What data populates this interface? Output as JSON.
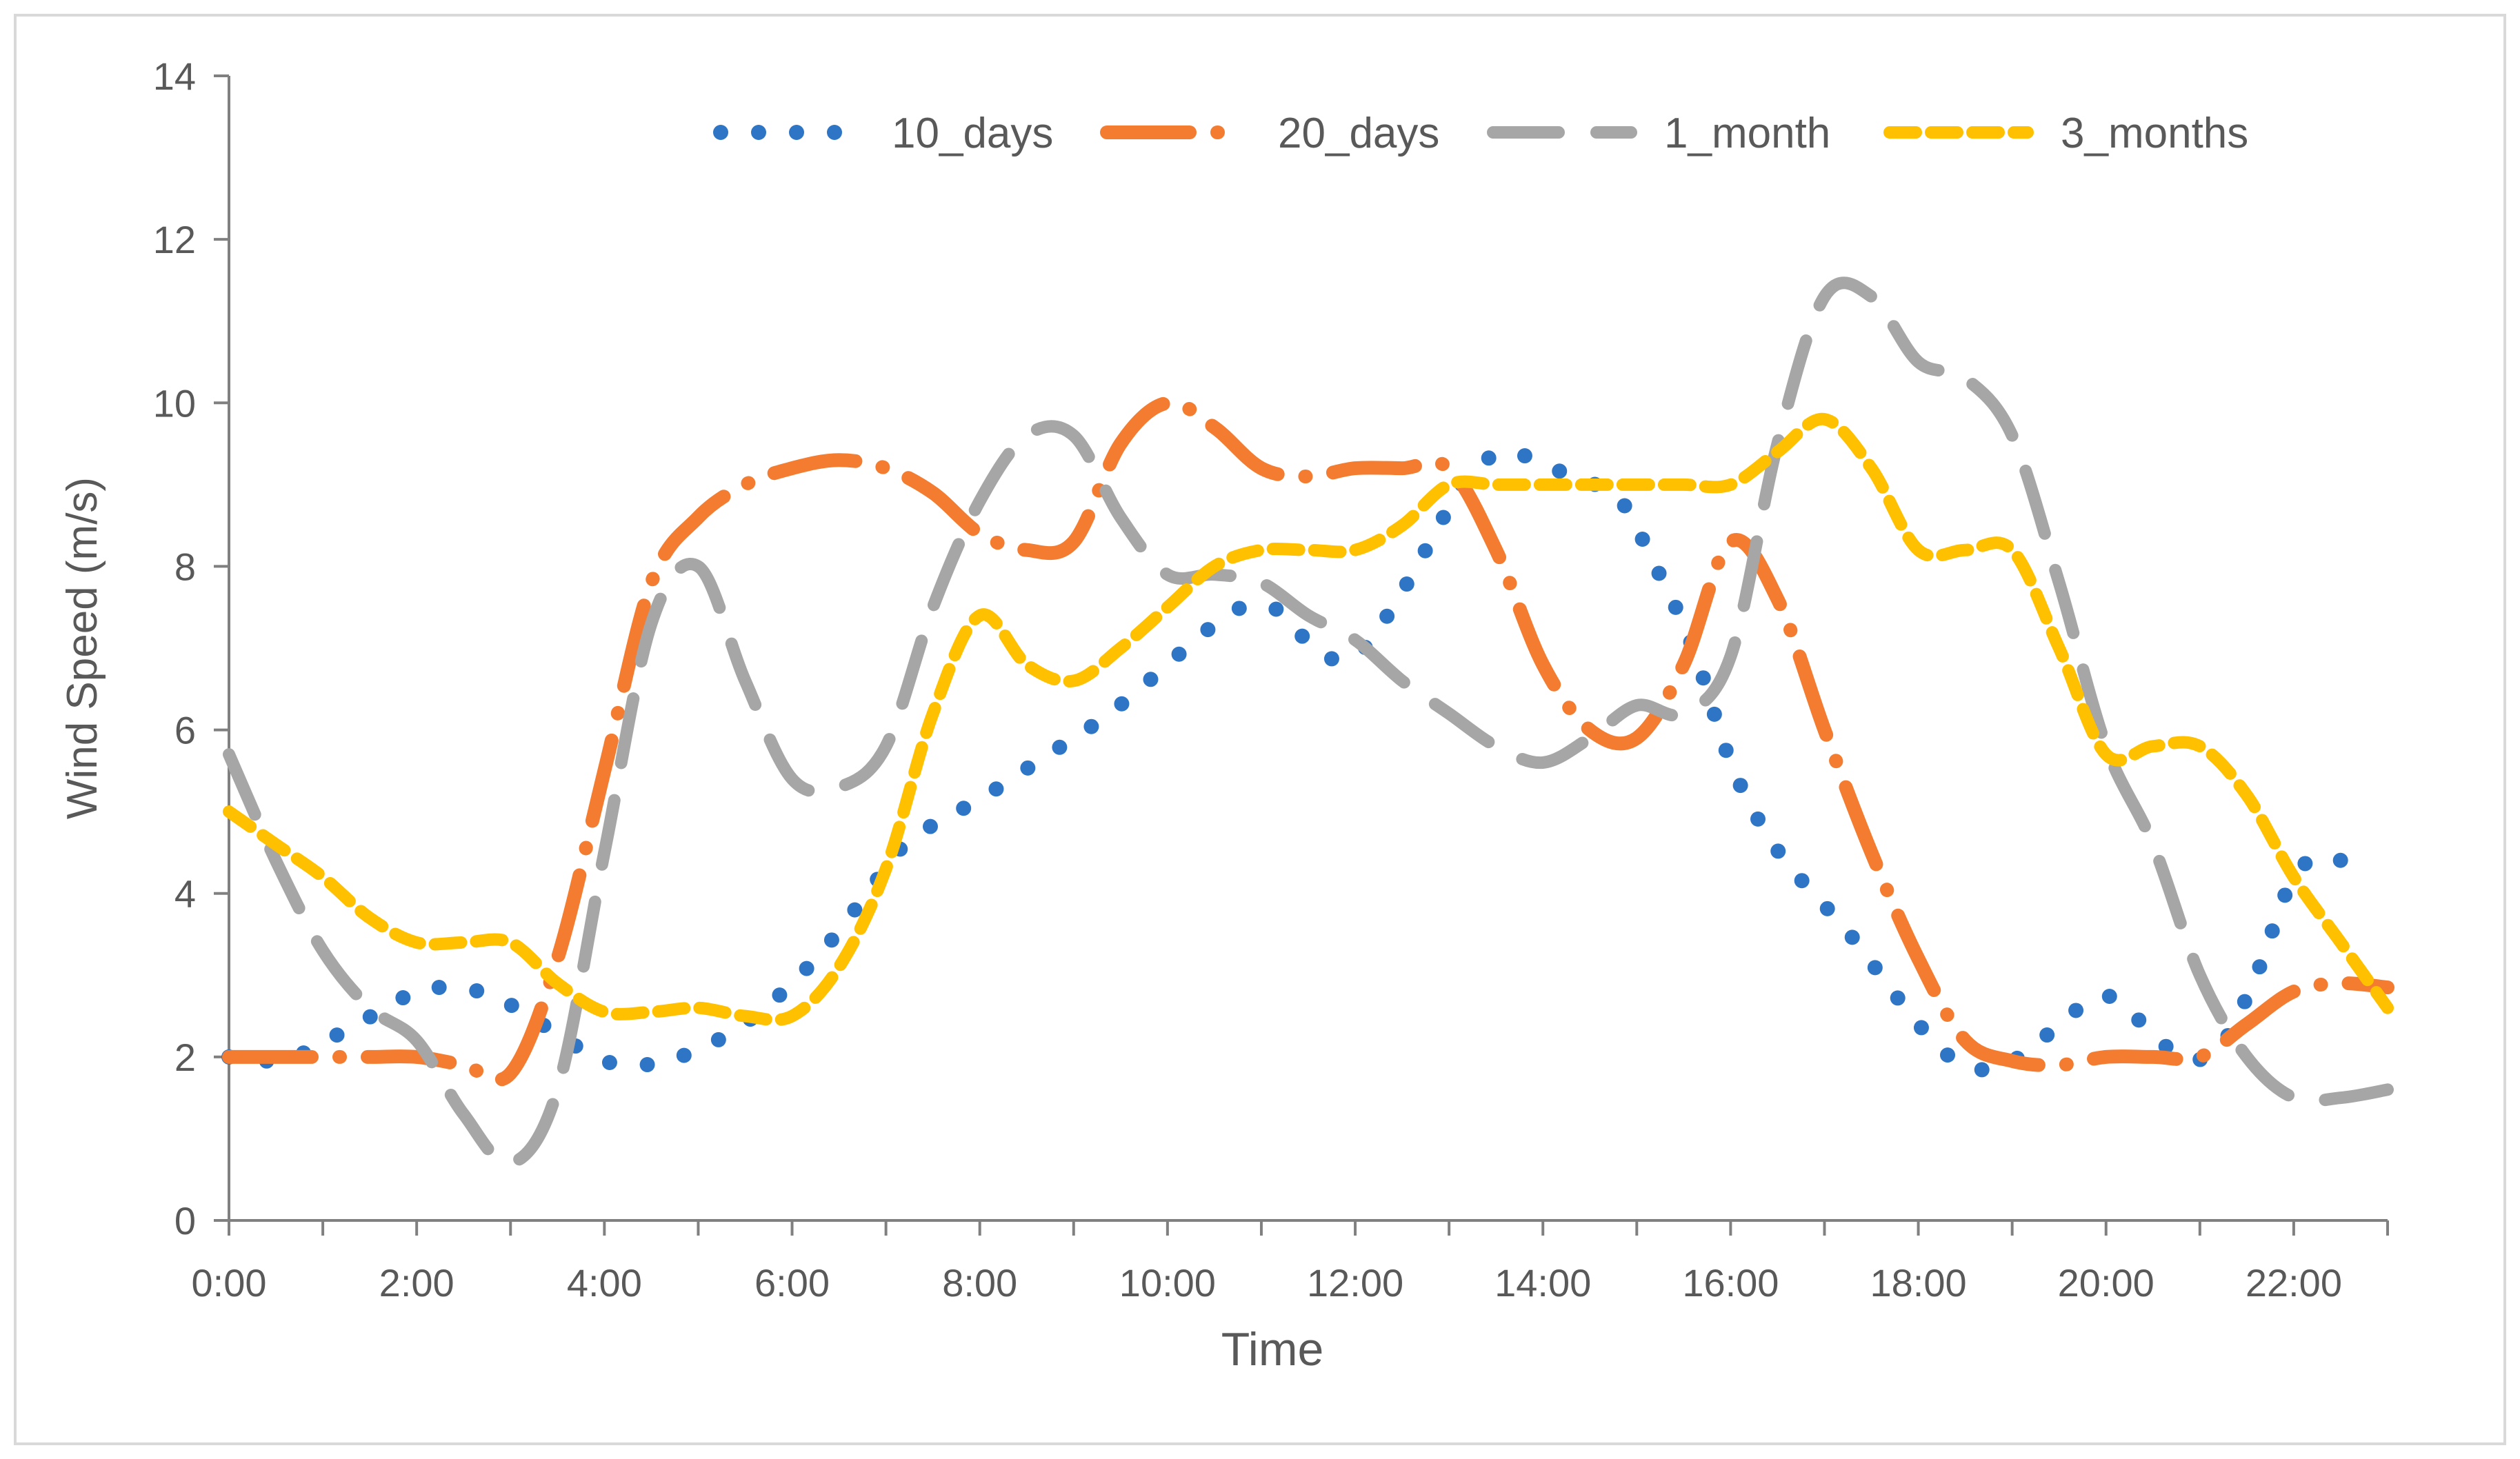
{
  "chart_data": {
    "type": "line",
    "title": "",
    "xlabel": "Time",
    "ylabel": "Wind Speed (m/s)",
    "ylim": [
      0,
      14
    ],
    "xlim": [
      0,
      23
    ],
    "yticks": [
      0,
      2,
      4,
      6,
      8,
      10,
      12,
      14
    ],
    "xticks": [
      {
        "value": 0,
        "label": "0:00"
      },
      {
        "value": 2,
        "label": "2:00"
      },
      {
        "value": 4,
        "label": "4:00"
      },
      {
        "value": 6,
        "label": "6:00"
      },
      {
        "value": 8,
        "label": "8:00"
      },
      {
        "value": 10,
        "label": "10:00"
      },
      {
        "value": 12,
        "label": "12:00"
      },
      {
        "value": 14,
        "label": "14:00"
      },
      {
        "value": 16,
        "label": "16:00"
      },
      {
        "value": 18,
        "label": "18:00"
      },
      {
        "value": 20,
        "label": "20:00"
      },
      {
        "value": 22,
        "label": "22:00"
      }
    ],
    "grid": false,
    "legend_position": "top",
    "series": [
      {
        "name": "10_days",
        "color": "#2E75C6",
        "style": "dotted",
        "x": [
          0,
          0.4,
          0.8,
          1.2,
          1.6,
          2,
          2.4,
          2.8,
          3.2,
          3.6,
          4,
          4.4,
          4.8,
          5.2,
          5.6,
          6,
          6.4,
          6.8,
          7.2,
          7.6,
          8,
          8.4,
          8.8,
          9.2,
          9.6,
          10,
          10.4,
          10.8,
          11.2,
          11.6,
          12,
          12.4,
          12.8,
          13.2,
          13.6,
          14,
          14.4,
          14.8,
          15.2,
          15.6,
          16,
          16.4,
          16.8,
          17.2,
          17.6,
          18,
          18.4,
          18.8,
          19.2,
          19.6,
          20,
          20.4,
          20.8,
          21.2,
          21.6,
          22,
          22.4,
          22.8
        ],
        "values": [
          2.0,
          1.95,
          2.05,
          2.3,
          2.55,
          2.8,
          2.85,
          2.75,
          2.5,
          2.2,
          1.95,
          1.9,
          2.0,
          2.2,
          2.5,
          2.9,
          3.4,
          4.0,
          4.6,
          4.9,
          5.15,
          5.45,
          5.75,
          6.05,
          6.4,
          6.8,
          7.2,
          7.5,
          7.45,
          6.95,
          6.9,
          7.5,
          8.3,
          9.1,
          9.4,
          9.25,
          9.05,
          8.85,
          8.0,
          7.0,
          5.6,
          4.7,
          4.1,
          3.6,
          3.0,
          2.4,
          1.95,
          1.85,
          2.1,
          2.5,
          2.75,
          2.4,
          2.0,
          2.1,
          3.0,
          4.2,
          4.45,
          4.1
        ]
      },
      {
        "name": "20_days",
        "color": "#F47C30",
        "style": "long-dash-dot",
        "x": [
          0,
          0.5,
          1,
          1.5,
          2,
          2.5,
          3,
          3.5,
          4,
          4.5,
          5,
          5.5,
          6,
          6.5,
          7,
          7.5,
          8,
          8.5,
          9,
          9.5,
          10,
          10.5,
          11,
          11.5,
          12,
          12.5,
          13,
          13.5,
          14,
          14.5,
          15,
          15.5,
          16,
          16.5,
          17,
          17.5,
          18,
          18.5,
          19,
          19.5,
          20,
          20.5,
          21,
          21.5,
          22,
          22.5,
          23
        ],
        "values": [
          2.0,
          2.0,
          2.0,
          2.0,
          2.0,
          1.9,
          1.8,
          3.2,
          5.5,
          7.8,
          8.6,
          9.0,
          9.2,
          9.3,
          9.2,
          8.9,
          8.4,
          8.2,
          8.3,
          9.5,
          10.0,
          9.7,
          9.2,
          9.1,
          9.2,
          9.2,
          9.2,
          8.2,
          6.8,
          6.0,
          5.9,
          6.8,
          8.3,
          7.6,
          6.0,
          4.5,
          3.2,
          2.2,
          1.95,
          1.9,
          2.0,
          2.0,
          2.0,
          2.4,
          2.8,
          2.9,
          2.85
        ]
      },
      {
        "name": "1_month",
        "color": "#A6A6A6",
        "style": "dashed",
        "x": [
          0,
          0.5,
          1,
          1.5,
          2,
          2.5,
          3,
          3.5,
          4,
          4.5,
          5,
          5.5,
          6,
          6.5,
          7,
          7.5,
          8,
          8.5,
          9,
          9.5,
          10,
          10.5,
          11,
          11.5,
          12,
          12.5,
          13,
          13.5,
          14,
          14.5,
          15,
          15.5,
          16,
          16.5,
          17,
          17.5,
          18,
          18.5,
          19,
          19.5,
          20,
          20.5,
          21,
          21.5,
          22,
          22.5,
          23
        ],
        "values": [
          5.7,
          4.4,
          3.3,
          2.6,
          2.2,
          1.3,
          0.7,
          1.6,
          4.5,
          7.3,
          8.0,
          6.6,
          5.4,
          5.3,
          5.8,
          7.5,
          8.8,
          9.6,
          9.6,
          8.6,
          7.9,
          7.9,
          7.8,
          7.4,
          7.1,
          6.6,
          6.2,
          5.8,
          5.6,
          5.9,
          6.3,
          6.2,
          6.9,
          9.5,
          11.3,
          11.3,
          10.5,
          10.3,
          9.6,
          7.8,
          5.8,
          4.6,
          3.0,
          2.0,
          1.5,
          1.5,
          1.6
        ]
      },
      {
        "name": "3_months",
        "color": "#FFC000",
        "style": "short-dash",
        "x": [
          0,
          0.5,
          1,
          1.5,
          2,
          2.5,
          3,
          3.5,
          4,
          4.5,
          5,
          5.5,
          6,
          6.5,
          7,
          7.5,
          8,
          8.5,
          9,
          9.5,
          10,
          10.5,
          11,
          11.5,
          12,
          12.5,
          13,
          13.5,
          14,
          14.5,
          15,
          15.5,
          16,
          16.5,
          17,
          17.5,
          18,
          18.5,
          19,
          19.5,
          20,
          20.5,
          21,
          21.5,
          22,
          22.5,
          23
        ],
        "values": [
          5.0,
          4.6,
          4.2,
          3.7,
          3.4,
          3.4,
          3.4,
          2.9,
          2.55,
          2.55,
          2.6,
          2.5,
          2.5,
          3.1,
          4.3,
          6.2,
          7.4,
          6.8,
          6.6,
          7.0,
          7.5,
          8.0,
          8.2,
          8.2,
          8.2,
          8.5,
          9.0,
          9.0,
          9.0,
          9.0,
          9.0,
          9.0,
          9.0,
          9.4,
          9.8,
          9.2,
          8.2,
          8.2,
          8.2,
          7.0,
          5.7,
          5.8,
          5.8,
          5.2,
          4.2,
          3.4,
          2.6
        ]
      }
    ]
  }
}
